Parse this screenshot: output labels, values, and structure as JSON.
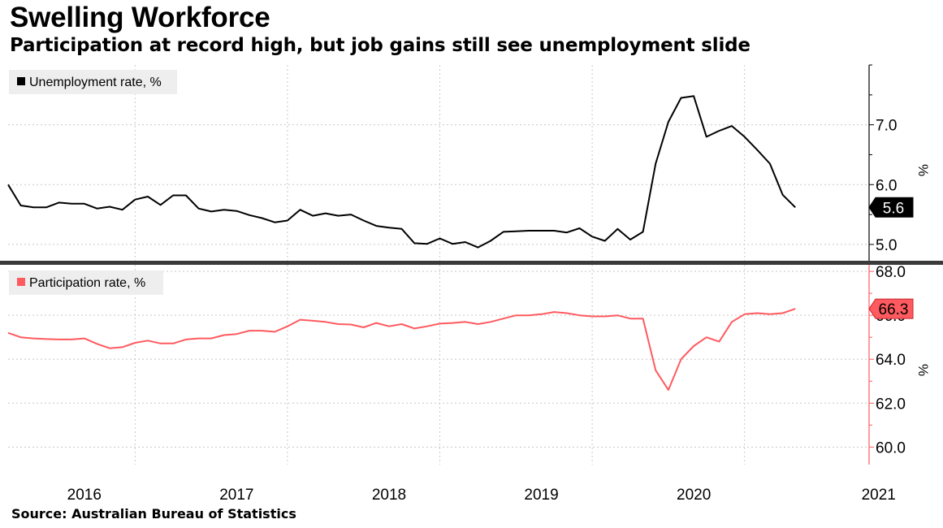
{
  "title": "Swelling Workforce",
  "subtitle": "Participation at record high, but job gains still see unemployment slide",
  "source": "Source: Australian Bureau of Statistics",
  "colors": {
    "unemployment": "#000000",
    "participation": "#ff5a5f",
    "grid": "#c8c8c8",
    "legend_bg": "#eeeeee"
  },
  "chart_data": [
    {
      "type": "line",
      "legend_label": "Unemployment rate, %",
      "ylabel": "%",
      "ylim": [
        4.7,
        8.0
      ],
      "yticks": [
        5.0,
        6.0,
        7.0
      ],
      "ytick_labels": [
        "5.0",
        "6.0",
        "7.0"
      ],
      "last_value_label": "5.6",
      "grid": true,
      "legend_position": "top-left",
      "x_dates": [
        "2015-07",
        "2015-08",
        "2015-09",
        "2015-10",
        "2015-11",
        "2015-12",
        "2016-01",
        "2016-02",
        "2016-03",
        "2016-04",
        "2016-05",
        "2016-06",
        "2016-07",
        "2016-08",
        "2016-09",
        "2016-10",
        "2016-11",
        "2016-12",
        "2017-01",
        "2017-02",
        "2017-03",
        "2017-04",
        "2017-05",
        "2017-06",
        "2017-07",
        "2017-08",
        "2017-09",
        "2017-10",
        "2017-11",
        "2017-12",
        "2018-01",
        "2018-02",
        "2018-03",
        "2018-04",
        "2018-05",
        "2018-06",
        "2018-07",
        "2018-08",
        "2018-09",
        "2018-10",
        "2018-11",
        "2018-12",
        "2019-01",
        "2019-02",
        "2019-03",
        "2019-04",
        "2019-05",
        "2019-06",
        "2019-07",
        "2019-08",
        "2019-09",
        "2019-10",
        "2019-11",
        "2019-12",
        "2020-01",
        "2020-02",
        "2020-03",
        "2020-04",
        "2020-05",
        "2020-06",
        "2020-07",
        "2020-08",
        "2020-09",
        "2020-10",
        "2020-11",
        "2020-12",
        "2021-01",
        "2021-02",
        "2021-03"
      ],
      "values": [
        6.0,
        5.65,
        5.62,
        5.62,
        5.7,
        5.68,
        5.68,
        5.6,
        5.63,
        5.58,
        5.75,
        5.8,
        5.66,
        5.82,
        5.82,
        5.6,
        5.55,
        5.58,
        5.56,
        5.49,
        5.44,
        5.37,
        5.4,
        5.58,
        5.48,
        5.52,
        5.48,
        5.5,
        5.4,
        5.31,
        5.28,
        5.26,
        5.02,
        5.01,
        5.1,
        5.01,
        5.04,
        4.95,
        5.06,
        5.21,
        5.22,
        5.23,
        5.23,
        5.23,
        5.2,
        5.27,
        5.13,
        5.06,
        5.26,
        5.08,
        5.21,
        6.35,
        7.05,
        7.45,
        7.48,
        6.8,
        6.9,
        6.98,
        6.8,
        6.58,
        6.35,
        5.83,
        5.62,
        null,
        null,
        null,
        null,
        null,
        null
      ]
    },
    {
      "type": "line",
      "legend_label": "Participation rate, %",
      "ylabel": "%",
      "ylim": [
        59.2,
        68.3
      ],
      "yticks": [
        60.0,
        62.0,
        64.0,
        66.0,
        68.0
      ],
      "ytick_labels": [
        "60.0",
        "62.0",
        "64.0",
        "66.0",
        "68.0"
      ],
      "last_value_label": "66.3",
      "grid": true,
      "legend_position": "top-left",
      "x_categories": [
        "2016",
        "2017",
        "2018",
        "2019",
        "2020",
        "2021"
      ],
      "x_dates": [
        "2015-07",
        "2015-08",
        "2015-09",
        "2015-10",
        "2015-11",
        "2015-12",
        "2016-01",
        "2016-02",
        "2016-03",
        "2016-04",
        "2016-05",
        "2016-06",
        "2016-07",
        "2016-08",
        "2016-09",
        "2016-10",
        "2016-11",
        "2016-12",
        "2017-01",
        "2017-02",
        "2017-03",
        "2017-04",
        "2017-05",
        "2017-06",
        "2017-07",
        "2017-08",
        "2017-09",
        "2017-10",
        "2017-11",
        "2017-12",
        "2018-01",
        "2018-02",
        "2018-03",
        "2018-04",
        "2018-05",
        "2018-06",
        "2018-07",
        "2018-08",
        "2018-09",
        "2018-10",
        "2018-11",
        "2018-12",
        "2019-01",
        "2019-02",
        "2019-03",
        "2019-04",
        "2019-05",
        "2019-06",
        "2019-07",
        "2019-08",
        "2019-09",
        "2019-10",
        "2019-11",
        "2019-12",
        "2020-01",
        "2020-02",
        "2020-03",
        "2020-04",
        "2020-05",
        "2020-06",
        "2020-07",
        "2020-08",
        "2020-09",
        "2020-10",
        "2020-11",
        "2020-12",
        "2021-01",
        "2021-02",
        "2021-03"
      ],
      "values": [
        65.2,
        65.0,
        64.95,
        64.92,
        64.9,
        64.9,
        64.95,
        64.7,
        64.5,
        64.55,
        64.75,
        64.85,
        64.72,
        64.72,
        64.9,
        64.95,
        64.95,
        65.1,
        65.15,
        65.3,
        65.3,
        65.25,
        65.5,
        65.8,
        65.75,
        65.7,
        65.6,
        65.58,
        65.45,
        65.65,
        65.5,
        65.6,
        65.4,
        65.5,
        65.62,
        65.65,
        65.7,
        65.6,
        65.7,
        65.85,
        66.0,
        66.0,
        66.05,
        66.15,
        66.1,
        66.0,
        65.95,
        65.95,
        66.0,
        65.85,
        65.85,
        63.5,
        62.6,
        64.0,
        64.6,
        65.0,
        64.8,
        65.7,
        66.05,
        66.1,
        66.05,
        66.1,
        66.3,
        null,
        null,
        null,
        null,
        null,
        null
      ]
    }
  ]
}
